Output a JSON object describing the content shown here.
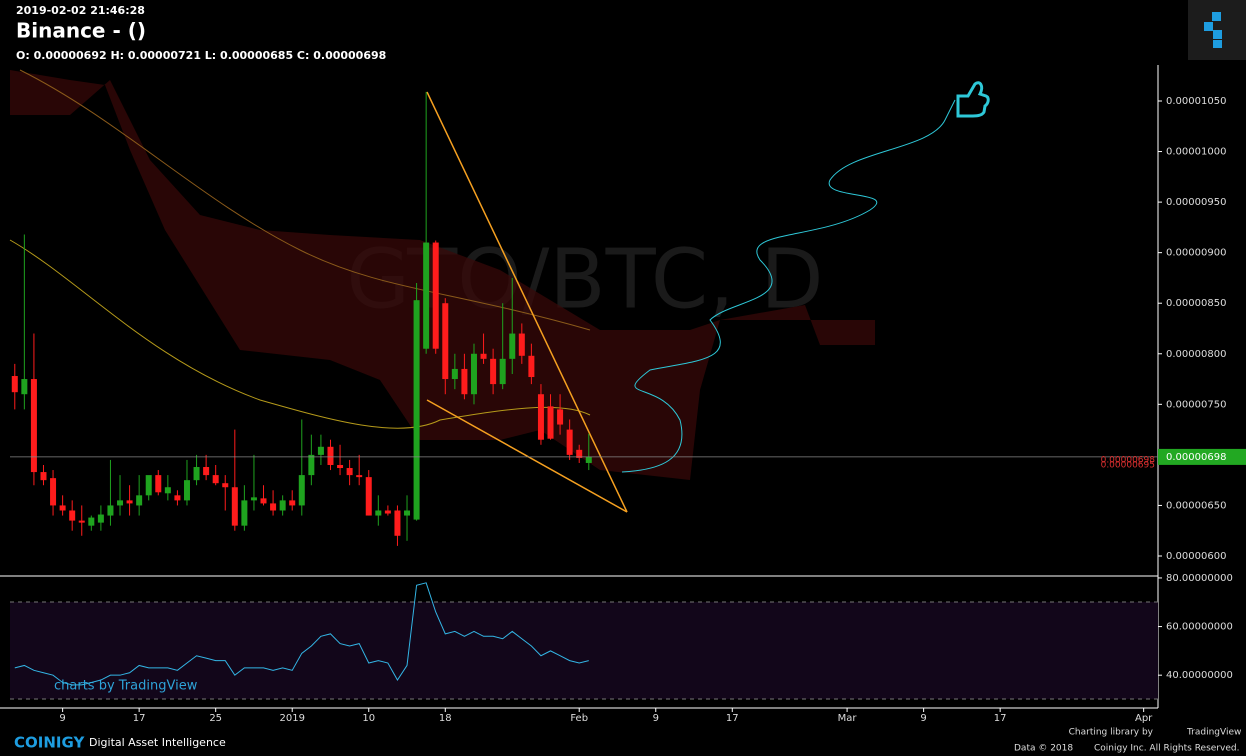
{
  "header": {
    "timestamp": "2019-02-02 21:46:28",
    "title": "Binance -  ()",
    "ohlc": "O: 0.00000692 H: 0.00000721 L: 0.00000685 C: 0.00000698"
  },
  "chart_data": {
    "type": "candlestick",
    "watermark": "GTO/BTC, D",
    "up_color": "#1fa31f",
    "down_color": "#ff1c1c",
    "x": [
      -5,
      -4,
      -3,
      -2,
      -1,
      0,
      1,
      2,
      3,
      4,
      5,
      6,
      7,
      8,
      9,
      10,
      11,
      12,
      13,
      14,
      15,
      16,
      17,
      18,
      19,
      20,
      21,
      22,
      23,
      24,
      25,
      26,
      27,
      28,
      29,
      30,
      31,
      32,
      33,
      34,
      35,
      36,
      37,
      38,
      39,
      40,
      41,
      42,
      43,
      44,
      45,
      46,
      47,
      48,
      49,
      50,
      51,
      52,
      53,
      54,
      55
    ],
    "open": [
      7.78e-06,
      7.6e-06,
      7.75e-06,
      6.83e-06,
      6.77e-06,
      6.5e-06,
      6.45e-06,
      6.35e-06,
      6.3e-06,
      6.33e-06,
      6.4e-06,
      6.5e-06,
      6.55e-06,
      6.5e-06,
      6.6e-06,
      6.8e-06,
      6.62e-06,
      6.6e-06,
      6.55e-06,
      6.75e-06,
      6.88e-06,
      6.8e-06,
      6.72e-06,
      6.68e-06,
      6.3e-06,
      6.55e-06,
      6.57e-06,
      6.52e-06,
      6.45e-06,
      6.55e-06,
      6.5e-06,
      6.8e-06,
      7e-06,
      7.08e-06,
      6.9e-06,
      6.87e-06,
      6.8e-06,
      6.78e-06,
      6.4e-06,
      6.45e-06,
      6.45e-06,
      6.4e-06,
      6.36e-06,
      8.05e-06,
      9.1e-06,
      8.5e-06,
      7.75e-06,
      7.85e-06,
      7.6e-06,
      8e-06,
      7.95e-06,
      7.7e-06,
      7.95e-06,
      8.2e-06,
      7.98e-06,
      7.6e-06,
      7.48e-06,
      7.45e-06,
      7.25e-06,
      7.05e-06,
      6.92e-06
    ],
    "high": [
      7.9e-06,
      9.18e-06,
      8.2e-06,
      6.9e-06,
      6.85e-06,
      6.6e-06,
      6.55e-06,
      6.5e-06,
      6.4e-06,
      6.5e-06,
      6.95e-06,
      6.8e-06,
      6.7e-06,
      6.8e-06,
      6.75e-06,
      6.85e-06,
      6.8e-06,
      6.65e-06,
      6.95e-06,
      7e-06,
      7e-06,
      6.9e-06,
      6.8e-06,
      7.25e-06,
      6.7e-06,
      7e-06,
      6.7e-06,
      6.65e-06,
      6.6e-06,
      6.65e-06,
      7.35e-06,
      7.2e-06,
      7.2e-06,
      7.15e-06,
      7.1e-06,
      6.95e-06,
      7e-06,
      6.85e-06,
      6.6e-06,
      6.5e-06,
      6.5e-06,
      6.6e-06,
      8.7e-06,
      1.059e-05,
      9.12e-06,
      8.55e-06,
      8e-06,
      8e-06,
      8.1e-06,
      8.2e-06,
      8.05e-06,
      8.5e-06,
      8.75e-06,
      8.3e-06,
      8.1e-06,
      7.7e-06,
      7.6e-06,
      7.6e-06,
      7.35e-06,
      7.1e-06,
      7.21e-06
    ],
    "low": [
      7.45e-06,
      7.45e-06,
      6.7e-06,
      6.7e-06,
      6.4e-06,
      6.4e-06,
      6.25e-06,
      6.2e-06,
      6.25e-06,
      6.25e-06,
      6.3e-06,
      6.4e-06,
      6.4e-06,
      6.4e-06,
      6.55e-06,
      6.6e-06,
      6.55e-06,
      6.5e-06,
      6.5e-06,
      6.7e-06,
      6.75e-06,
      6.7e-06,
      6.45e-06,
      6.25e-06,
      6.25e-06,
      6.45e-06,
      6.5e-06,
      6.4e-06,
      6.4e-06,
      6.45e-06,
      6.4e-06,
      6.7e-06,
      6.9e-06,
      6.85e-06,
      6.8e-06,
      6.7e-06,
      6.7e-06,
      6.4e-06,
      6.3e-06,
      6.4e-06,
      6.1e-06,
      6.15e-06,
      6.35e-06,
      8e-06,
      8e-06,
      7.6e-06,
      7.65e-06,
      7.55e-06,
      7.5e-06,
      7.9e-06,
      7.6e-06,
      7.65e-06,
      7.8e-06,
      7.9e-06,
      7.7e-06,
      7.1e-06,
      7.15e-06,
      7.2e-06,
      6.95e-06,
      6.92e-06,
      6.85e-06
    ],
    "close": [
      7.62e-06,
      7.75e-06,
      6.83e-06,
      6.75e-06,
      6.5e-06,
      6.45e-06,
      6.35e-06,
      6.33e-06,
      6.38e-06,
      6.41e-06,
      6.5e-06,
      6.55e-06,
      6.52e-06,
      6.6e-06,
      6.8e-06,
      6.63e-06,
      6.68e-06,
      6.55e-06,
      6.75e-06,
      6.88e-06,
      6.8e-06,
      6.72e-06,
      6.68e-06,
      6.3e-06,
      6.55e-06,
      6.58e-06,
      6.52e-06,
      6.45e-06,
      6.55e-06,
      6.5e-06,
      6.8e-06,
      7e-06,
      7.08e-06,
      6.9e-06,
      6.87e-06,
      6.8e-06,
      6.78e-06,
      6.4e-06,
      6.45e-06,
      6.42e-06,
      6.2e-06,
      6.45e-06,
      8.53e-06,
      9.1e-06,
      8.05e-06,
      7.75e-06,
      7.85e-06,
      7.6e-06,
      8e-06,
      7.95e-06,
      7.7e-06,
      7.95e-06,
      8.2e-06,
      7.98e-06,
      7.77e-06,
      7.15e-06,
      7.16e-06,
      7.3e-06,
      7e-06,
      6.97e-06,
      6.98e-06
    ],
    "xlim": [
      -5.5,
      114.5
    ],
    "xticks": [
      {
        "value": 0,
        "label": "9"
      },
      {
        "value": 8,
        "label": "17"
      },
      {
        "value": 16,
        "label": "25"
      },
      {
        "value": 24,
        "label": "2019"
      },
      {
        "value": 32,
        "label": "10"
      },
      {
        "value": 40,
        "label": "18"
      },
      {
        "value": 54,
        "label": "Feb"
      },
      {
        "value": 62,
        "label": "9"
      },
      {
        "value": 70,
        "label": "17"
      },
      {
        "value": 82,
        "label": "Mar"
      },
      {
        "value": 90,
        "label": "9"
      },
      {
        "value": 98,
        "label": "17"
      },
      {
        "value": 113,
        "label": "Apr"
      }
    ],
    "ylim": [
      5.812e-06,
      1.0856e-05
    ],
    "yticks": [
      {
        "value": 6e-06,
        "label": "0.00000600"
      },
      {
        "value": 6.5e-06,
        "label": "0.00000650"
      },
      {
        "value": 7e-06,
        "label": "0.00000700"
      },
      {
        "value": 7.5e-06,
        "label": "0.00000750"
      },
      {
        "value": 8e-06,
        "label": "0.00000800"
      },
      {
        "value": 8.5e-06,
        "label": "0.00000850"
      },
      {
        "value": 9e-06,
        "label": "0.00000900"
      },
      {
        "value": 9.5e-06,
        "label": "0.00000950"
      },
      {
        "value": 1e-05,
        "label": "0.00001000"
      },
      {
        "value": 1.05e-05,
        "label": "0.00001050"
      }
    ],
    "last_price": 6.98e-06,
    "last_color": "#22a822",
    "marker_prices": [
      6.98e-06,
      6.95e-06
    ],
    "rsi": {
      "color": "#33b5e5",
      "values": [
        43,
        44,
        42,
        41,
        40,
        37,
        36,
        36,
        37,
        38,
        40,
        40,
        41,
        44,
        43,
        43,
        43,
        42,
        45,
        48,
        47,
        46,
        46,
        40,
        43,
        43,
        43,
        42,
        43,
        42,
        49,
        52,
        56,
        57,
        53,
        52,
        53,
        45,
        46,
        45,
        38,
        44,
        77,
        78,
        66,
        57,
        58,
        56,
        58,
        56,
        56,
        55,
        58,
        55,
        52,
        48,
        50,
        48,
        46,
        45,
        46
      ],
      "ylim": [
        26.5,
        80.8
      ],
      "yticks": [
        {
          "value": 80,
          "label": "80.00000000"
        },
        {
          "value": 60,
          "label": "60.00000000"
        },
        {
          "value": 40,
          "label": "40.00000000"
        }
      ]
    }
  },
  "footer": {
    "tv_badge": "charts by TradingView",
    "brand": "COINIGY",
    "tagline": "Digital Asset Intelligence",
    "library": "Charting library by",
    "library_name": "TradingView",
    "copyright": "Data © 2018",
    "rights": "Coinigy Inc. All Rights Reserved."
  }
}
